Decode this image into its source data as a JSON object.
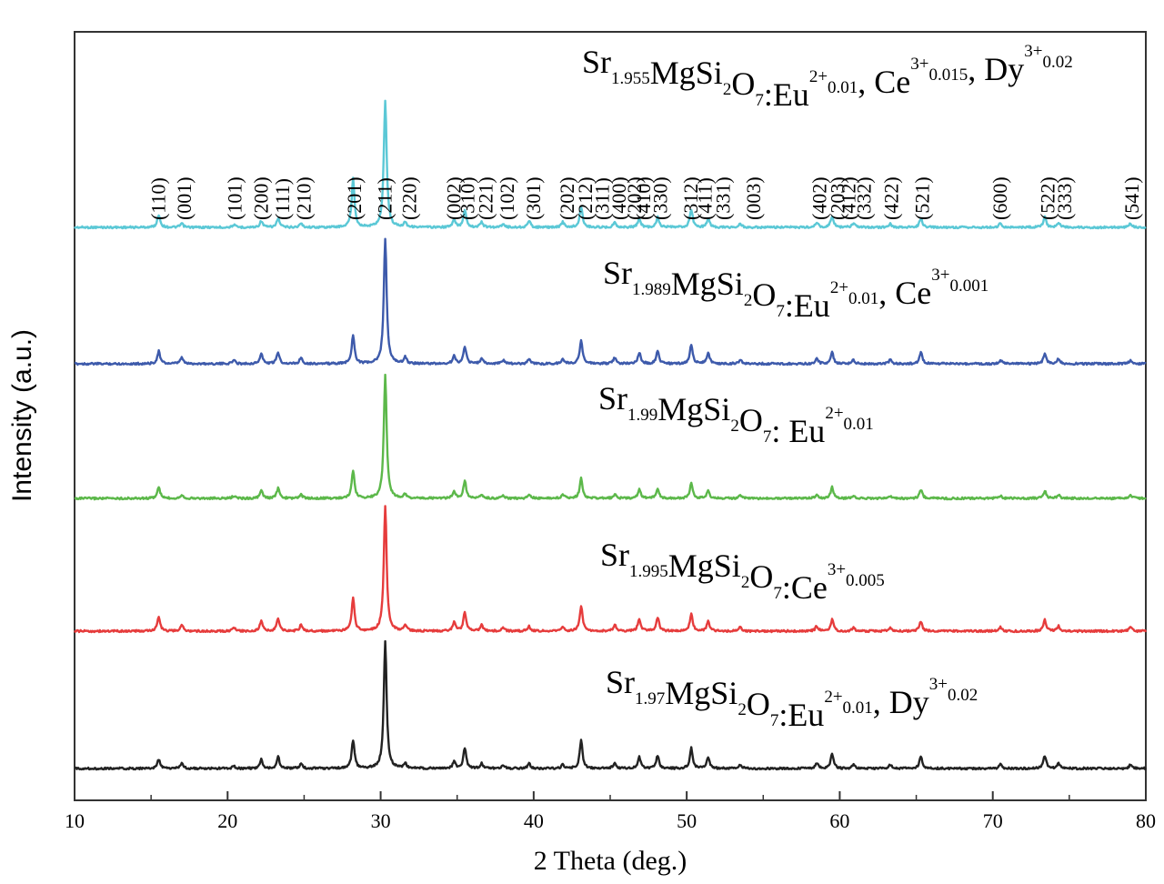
{
  "chart_data": {
    "type": "line",
    "title": "",
    "xlabel": "2 Theta (deg.)",
    "ylabel": "Intensity (a.u.)",
    "xlim": [
      10,
      80
    ],
    "x_ticks": [
      "10",
      "20",
      "30",
      "40",
      "50",
      "60",
      "70",
      "80"
    ],
    "y_ticks": [],
    "grid": false,
    "legend": "none",
    "peak_positions": [
      15.5,
      17.0,
      20.4,
      22.2,
      23.3,
      24.8,
      28.2,
      30.3,
      31.6,
      34.8,
      35.5,
      36.6,
      38.0,
      39.7,
      41.9,
      43.1,
      45.3,
      46.9,
      48.1,
      50.3,
      51.4,
      53.5,
      58.5,
      59.5,
      60.9,
      63.3,
      65.3,
      70.5,
      73.4,
      74.3,
      79.0
    ],
    "series": [
      {
        "label": {
          "base": "Sr",
          "sub1": "1.955",
          "mid1": "MgSi",
          "sub2": "2",
          "mid2": "O",
          "sub3": "7",
          "mid3": ":Eu",
          "sup1": "2+",
          "sub4": "0.01",
          "sep1": ", Ce",
          "sup2": "3+",
          "sub5": "0.015",
          "sep2": ", Dy",
          "sup3": "3+",
          "sub6": "0.02"
        },
        "color": "#5bc8d6",
        "intensities": [
          10,
          3,
          2,
          5,
          7,
          3,
          38,
          100,
          4,
          6,
          14,
          4,
          3,
          5,
          4,
          16,
          4,
          7,
          8,
          14,
          7,
          3,
          4,
          9,
          3,
          3,
          7,
          3,
          8,
          4,
          3
        ]
      },
      {
        "label": {
          "base": "Sr",
          "sub1": "1.989",
          "mid1": "MgSi",
          "sub2": "2",
          "mid2": "O",
          "sub3": "7",
          "mid3": ":Eu",
          "sup1": "2+",
          "sub4": "0.01",
          "sep1": ", Ce",
          "sup2": "3+",
          "sub5": "0.001"
        },
        "color": "#3d5aab",
        "intensities": [
          10,
          5,
          3,
          8,
          9,
          5,
          23,
          100,
          5,
          6,
          14,
          4,
          3,
          4,
          4,
          19,
          5,
          9,
          10,
          15,
          9,
          3,
          4,
          9,
          3,
          3,
          9,
          3,
          8,
          4,
          3
        ]
      },
      {
        "label": {
          "base": "Sr",
          "sub1": "1.99",
          "mid1": "MgSi",
          "sub2": "2",
          "mid2": "O",
          "sub3": "7",
          "mid3": ": Eu",
          "sup1": "2+",
          "sub4": "0.01"
        },
        "color": "#5cb84a",
        "intensities": [
          9,
          3,
          2,
          6,
          8,
          3,
          22,
          100,
          3,
          5,
          14,
          3,
          2,
          3,
          3,
          16,
          3,
          7,
          8,
          13,
          6,
          2,
          3,
          9,
          2,
          2,
          7,
          2,
          6,
          3,
          3
        ]
      },
      {
        "label": {
          "base": "Sr",
          "sub1": "1.995",
          "mid1": "MgSi",
          "sub2": "2",
          "mid2": "O",
          "sub3": "7",
          "mid3": ":Ce",
          "sup1": "3+",
          "sub4": "0.005"
        },
        "color": "#e63c3c",
        "intensities": [
          12,
          5,
          3,
          8,
          10,
          5,
          26,
          100,
          5,
          7,
          15,
          5,
          3,
          4,
          4,
          20,
          5,
          10,
          11,
          14,
          8,
          3,
          4,
          9,
          3,
          3,
          8,
          3,
          9,
          4,
          3
        ]
      },
      {
        "label": {
          "base": "Sr",
          "sub1": "1.97",
          "mid1": "MgSi",
          "sub2": "2",
          "mid2": "O",
          "sub3": "7",
          "mid3": ":Eu",
          "sup1": "2+",
          "sub4": "0.01",
          "sep1": ",  Dy",
          "sup2": "3+",
          "sub5": "0.02"
        },
        "color": "#222222",
        "intensities": [
          7,
          4,
          2,
          7,
          9,
          4,
          22,
          100,
          4,
          5,
          16,
          4,
          3,
          4,
          3,
          22,
          5,
          9,
          10,
          16,
          9,
          3,
          4,
          12,
          3,
          3,
          10,
          3,
          10,
          4,
          3
        ]
      }
    ],
    "hkl_labels": [
      {
        "text": "(110)",
        "x": 15.5
      },
      {
        "text": "(001)",
        "x": 17.2
      },
      {
        "text": "(101)",
        "x": 20.5
      },
      {
        "text": "(200)",
        "x": 22.2
      },
      {
        "text": "(111)",
        "x": 23.6
      },
      {
        "text": "(210)",
        "x": 25.0
      },
      {
        "text": "(201)",
        "x": 28.3
      },
      {
        "text": "(211)",
        "x": 30.3
      },
      {
        "text": "(220)",
        "x": 31.9
      },
      {
        "text": "(002)",
        "x": 34.8
      },
      {
        "text": "(310)",
        "x": 35.7
      },
      {
        "text": "(221)",
        "x": 36.9
      },
      {
        "text": "(102)",
        "x": 38.3
      },
      {
        "text": "(301)",
        "x": 40.0
      },
      {
        "text": "(202)",
        "x": 42.2
      },
      {
        "text": "(212)",
        "x": 43.4
      },
      {
        "text": "(311)",
        "x": 44.5
      },
      {
        "text": "(400)",
        "x": 45.6
      },
      {
        "text": "(202)",
        "x": 46.6
      },
      {
        "text": "(410)",
        "x": 47.2
      },
      {
        "text": "(330)",
        "x": 48.3
      },
      {
        "text": "(312)",
        "x": 50.3
      },
      {
        "text": "(411)",
        "x": 51.2
      },
      {
        "text": "(331)",
        "x": 52.4
      },
      {
        "text": "(003)",
        "x": 54.4
      },
      {
        "text": "(402)",
        "x": 58.7
      },
      {
        "text": "(203)",
        "x": 59.9
      },
      {
        "text": "(412)",
        "x": 60.6
      },
      {
        "text": "(332)",
        "x": 61.6
      },
      {
        "text": "(422)",
        "x": 63.4
      },
      {
        "text": "(521)",
        "x": 65.4
      },
      {
        "text": "(600)",
        "x": 70.5
      },
      {
        "text": "(522)",
        "x": 73.6
      },
      {
        "text": "(333)",
        "x": 74.7
      },
      {
        "text": "(541)",
        "x": 79.1
      }
    ]
  }
}
